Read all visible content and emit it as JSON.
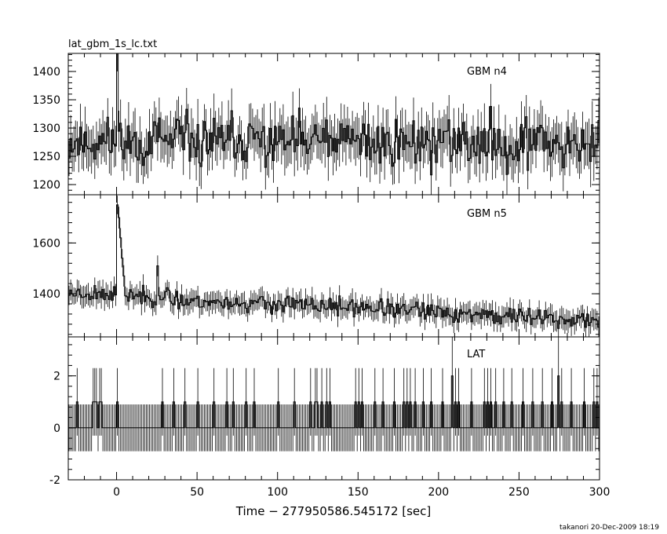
{
  "title": "lat_gbm_1s_lc.txt",
  "footer": "takanori 20-Dec-2009 18:19",
  "chart_data": {
    "type": "line",
    "xlabel": "Time − 277950586.545172 [sec]",
    "xlim": [
      -30,
      300
    ],
    "xticks": [
      0,
      50,
      100,
      150,
      200,
      250,
      300
    ],
    "panels": [
      {
        "label": "GBM n4",
        "ylim": [
          1182,
          1432
        ],
        "yticks": [
          1200,
          1250,
          1300,
          1350,
          1400
        ],
        "series": {
          "type": "noise",
          "seed": 11,
          "baseline": [
            [
              -30,
              1275
            ],
            [
              300,
              1275
            ]
          ],
          "noise_amp": 28,
          "err_amp": 38,
          "spike": [
            {
              "x": 0,
              "y": 1432
            }
          ]
        }
      },
      {
        "label": "GBM n5",
        "ylim": [
          1230,
          1790
        ],
        "yticks": [
          1400,
          1600
        ],
        "series": {
          "type": "noise",
          "seed": 23,
          "baseline": [
            [
              -30,
              1405
            ],
            [
              0,
              1400
            ],
            [
              50,
              1370
            ],
            [
              150,
              1345
            ],
            [
              250,
              1310
            ],
            [
              300,
              1290
            ]
          ],
          "noise_amp": 22,
          "err_amp": 38,
          "spike": [
            {
              "x": 0,
              "y": 1750
            },
            {
              "x": 1,
              "y": 1700
            },
            {
              "x": 2,
              "y": 1620
            },
            {
              "x": 3,
              "y": 1540
            },
            {
              "x": 4,
              "y": 1470
            },
            {
              "x": 25,
              "y": 1510
            }
          ]
        }
      },
      {
        "label": "LAT",
        "ylim": [
          -2,
          3.5
        ],
        "yticks": [
          -2,
          0,
          2
        ],
        "series": {
          "type": "counts",
          "err": 0.9,
          "events": [
            -25,
            -15,
            -14,
            -13,
            -11,
            -10,
            0,
            28,
            35,
            42,
            50,
            60,
            68,
            72,
            80,
            85,
            100,
            110,
            120,
            123,
            124,
            127,
            130,
            132,
            148,
            150,
            152,
            160,
            165,
            172,
            178,
            180,
            182,
            185,
            190,
            195,
            202,
            210,
            212,
            220,
            228,
            230,
            232,
            235,
            240,
            245,
            252,
            258,
            264,
            270,
            276,
            282,
            290,
            296,
            298
          ],
          "doubles": [
            208,
            274
          ],
          "spikes": [
            208,
            274
          ]
        }
      }
    ]
  }
}
